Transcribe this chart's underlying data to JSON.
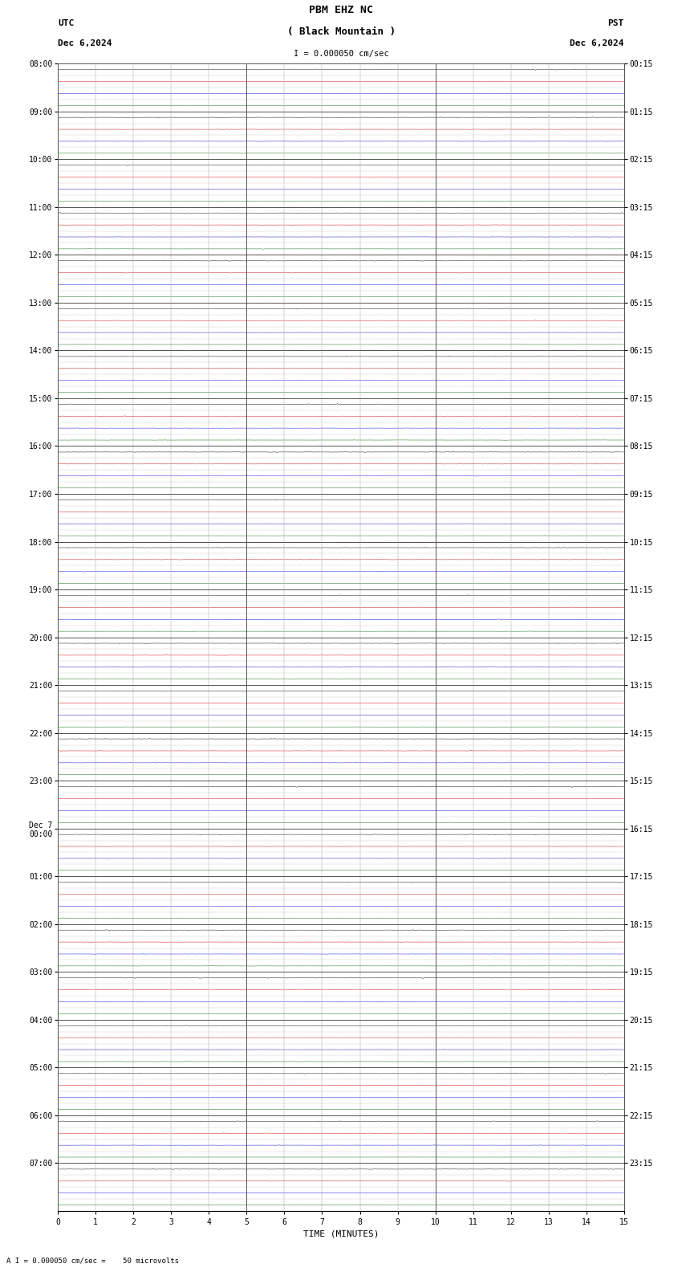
{
  "title_line1": "PBM EHZ NC",
  "title_line2": "( Black Mountain )",
  "scale_text": "I = 0.000050 cm/sec",
  "left_header": "UTC",
  "left_date": "Dec 6,2024",
  "right_header": "PST",
  "right_date": "Dec 6,2024",
  "bottom_label": "TIME (MINUTES)",
  "bottom_note": "A I = 0.000050 cm/sec =    50 microvolts",
  "xlabel_ticks": [
    0,
    1,
    2,
    3,
    4,
    5,
    6,
    7,
    8,
    9,
    10,
    11,
    12,
    13,
    14,
    15
  ],
  "utc_labels": [
    "08:00",
    "09:00",
    "10:00",
    "11:00",
    "12:00",
    "13:00",
    "14:00",
    "15:00",
    "16:00",
    "17:00",
    "18:00",
    "19:00",
    "20:00",
    "21:00",
    "22:00",
    "23:00",
    "Dec 7\n00:00",
    "01:00",
    "02:00",
    "03:00",
    "04:00",
    "05:00",
    "06:00",
    "07:00"
  ],
  "pst_labels": [
    "00:15",
    "01:15",
    "02:15",
    "03:15",
    "04:15",
    "05:15",
    "06:15",
    "07:15",
    "08:15",
    "09:15",
    "10:15",
    "11:15",
    "12:15",
    "13:15",
    "14:15",
    "15:15",
    "16:15",
    "17:15",
    "18:15",
    "19:15",
    "20:15",
    "21:15",
    "22:15",
    "23:15"
  ],
  "n_hours": 24,
  "traces_per_hour": 4,
  "bg_color": "#ffffff",
  "trace_colors": [
    "#000000",
    "#cc0000",
    "#0000cc",
    "#006600"
  ],
  "grid_color": "#aaaaaa",
  "major_grid_color": "#555555",
  "minor_grid_color": "#cccccc",
  "xmin": 0,
  "xmax": 15,
  "figwidth": 8.5,
  "figheight": 15.84,
  "dpi": 100
}
